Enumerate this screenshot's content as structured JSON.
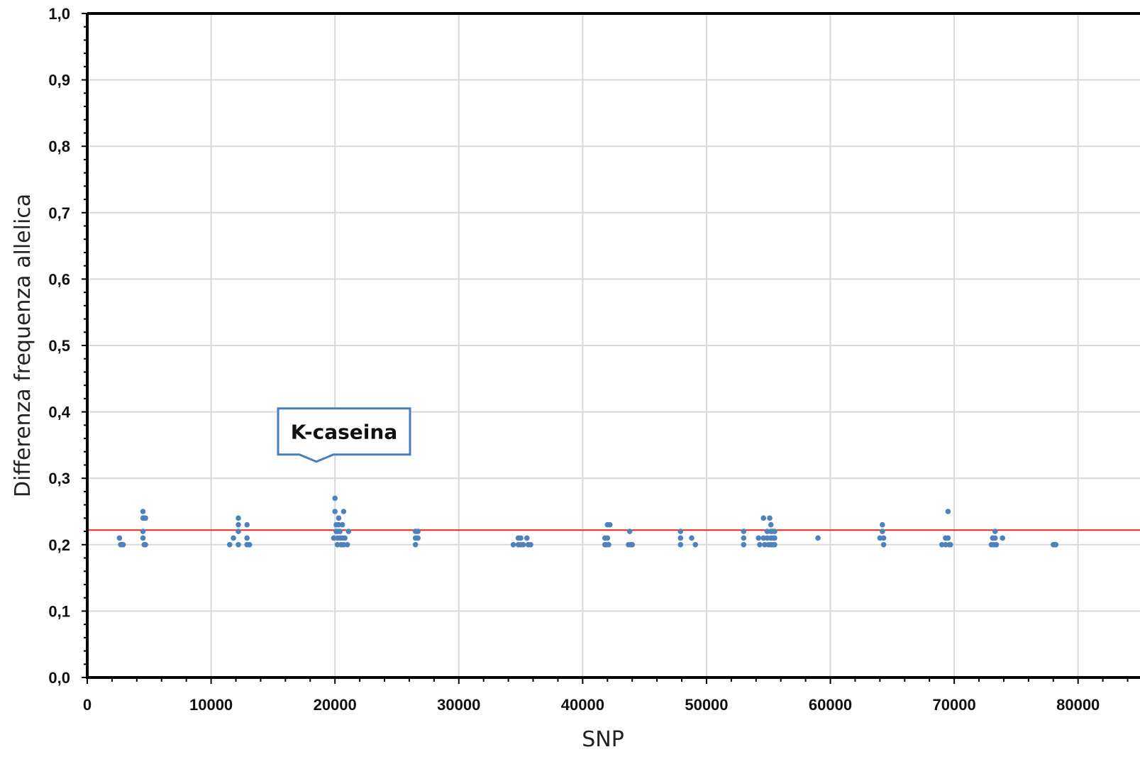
{
  "chart_data": {
    "type": "scatter",
    "xlabel": "SNP",
    "ylabel": "Differenza frequenza allelica",
    "xlim": [
      0,
      85000
    ],
    "ylim": [
      0.0,
      1.0
    ],
    "x_ticks": [
      "0",
      "10000",
      "20000",
      "30000",
      "40000",
      "50000",
      "60000",
      "70000",
      "80000"
    ],
    "y_ticks": [
      "0,0",
      "0,1",
      "0,2",
      "0,3",
      "0,4",
      "0,5",
      "0,6",
      "0,7",
      "0,8",
      "0,9",
      "1,0"
    ],
    "grid": true,
    "threshold": 0.222,
    "annotation": {
      "text": "K-caseina",
      "x": 18500,
      "y": 0.325
    },
    "colors": {
      "points": "#4f81bd",
      "threshold_line": "#e8261c",
      "callout_border": "#4a7ebb",
      "grid": "#d9d9d9",
      "axis": "#000000"
    },
    "points": [
      [
        2600,
        0.21
      ],
      [
        2700,
        0.2
      ],
      [
        2800,
        0.2
      ],
      [
        2900,
        0.2
      ],
      [
        4500,
        0.25
      ],
      [
        4500,
        0.24
      ],
      [
        4600,
        0.24
      ],
      [
        4700,
        0.24
      ],
      [
        4500,
        0.22
      ],
      [
        4500,
        0.21
      ],
      [
        4600,
        0.2
      ],
      [
        4700,
        0.2
      ],
      [
        11500,
        0.2
      ],
      [
        11800,
        0.21
      ],
      [
        12200,
        0.24
      ],
      [
        12200,
        0.23
      ],
      [
        12200,
        0.22
      ],
      [
        12200,
        0.2
      ],
      [
        12900,
        0.23
      ],
      [
        12900,
        0.21
      ],
      [
        12900,
        0.2
      ],
      [
        13100,
        0.2
      ],
      [
        19900,
        0.21
      ],
      [
        20000,
        0.27
      ],
      [
        20000,
        0.25
      ],
      [
        20100,
        0.23
      ],
      [
        20100,
        0.22
      ],
      [
        20200,
        0.22
      ],
      [
        20200,
        0.21
      ],
      [
        20200,
        0.2
      ],
      [
        20300,
        0.24
      ],
      [
        20300,
        0.23
      ],
      [
        20400,
        0.22
      ],
      [
        20400,
        0.21
      ],
      [
        20500,
        0.2
      ],
      [
        20600,
        0.23
      ],
      [
        20600,
        0.21
      ],
      [
        20700,
        0.25
      ],
      [
        20700,
        0.2
      ],
      [
        20800,
        0.21
      ],
      [
        21000,
        0.2
      ],
      [
        21100,
        0.22
      ],
      [
        26500,
        0.22
      ],
      [
        26500,
        0.21
      ],
      [
        26500,
        0.2
      ],
      [
        26700,
        0.22
      ],
      [
        26700,
        0.21
      ],
      [
        34400,
        0.2
      ],
      [
        34800,
        0.21
      ],
      [
        34800,
        0.2
      ],
      [
        35000,
        0.21
      ],
      [
        35000,
        0.2
      ],
      [
        35200,
        0.2
      ],
      [
        35500,
        0.21
      ],
      [
        35600,
        0.2
      ],
      [
        35800,
        0.2
      ],
      [
        41800,
        0.21
      ],
      [
        41800,
        0.2
      ],
      [
        41900,
        0.2
      ],
      [
        42000,
        0.23
      ],
      [
        42000,
        0.21
      ],
      [
        42100,
        0.2
      ],
      [
        42200,
        0.23
      ],
      [
        43700,
        0.2
      ],
      [
        43800,
        0.22
      ],
      [
        43900,
        0.2
      ],
      [
        44000,
        0.2
      ],
      [
        47900,
        0.22
      ],
      [
        47900,
        0.21
      ],
      [
        47900,
        0.2
      ],
      [
        48800,
        0.21
      ],
      [
        49100,
        0.2
      ],
      [
        53000,
        0.22
      ],
      [
        53000,
        0.21
      ],
      [
        53000,
        0.2
      ],
      [
        54200,
        0.21
      ],
      [
        54300,
        0.2
      ],
      [
        54600,
        0.24
      ],
      [
        54600,
        0.21
      ],
      [
        54700,
        0.2
      ],
      [
        54900,
        0.22
      ],
      [
        54900,
        0.21
      ],
      [
        55000,
        0.2
      ],
      [
        55100,
        0.24
      ],
      [
        55200,
        0.23
      ],
      [
        55200,
        0.22
      ],
      [
        55200,
        0.21
      ],
      [
        55200,
        0.2
      ],
      [
        55300,
        0.22
      ],
      [
        55400,
        0.21
      ],
      [
        55400,
        0.2
      ],
      [
        55500,
        0.22
      ],
      [
        55500,
        0.21
      ],
      [
        55500,
        0.2
      ],
      [
        59000,
        0.21
      ],
      [
        64000,
        0.21
      ],
      [
        64200,
        0.23
      ],
      [
        64200,
        0.22
      ],
      [
        64300,
        0.21
      ],
      [
        64300,
        0.2
      ],
      [
        69000,
        0.2
      ],
      [
        69300,
        0.21
      ],
      [
        69300,
        0.2
      ],
      [
        69500,
        0.25
      ],
      [
        69500,
        0.21
      ],
      [
        69600,
        0.2
      ],
      [
        69700,
        0.2
      ],
      [
        73000,
        0.2
      ],
      [
        73100,
        0.21
      ],
      [
        73200,
        0.2
      ],
      [
        73300,
        0.22
      ],
      [
        73300,
        0.21
      ],
      [
        73400,
        0.2
      ],
      [
        73900,
        0.21
      ],
      [
        78000,
        0.2
      ],
      [
        78100,
        0.2
      ],
      [
        78200,
        0.2
      ]
    ]
  }
}
